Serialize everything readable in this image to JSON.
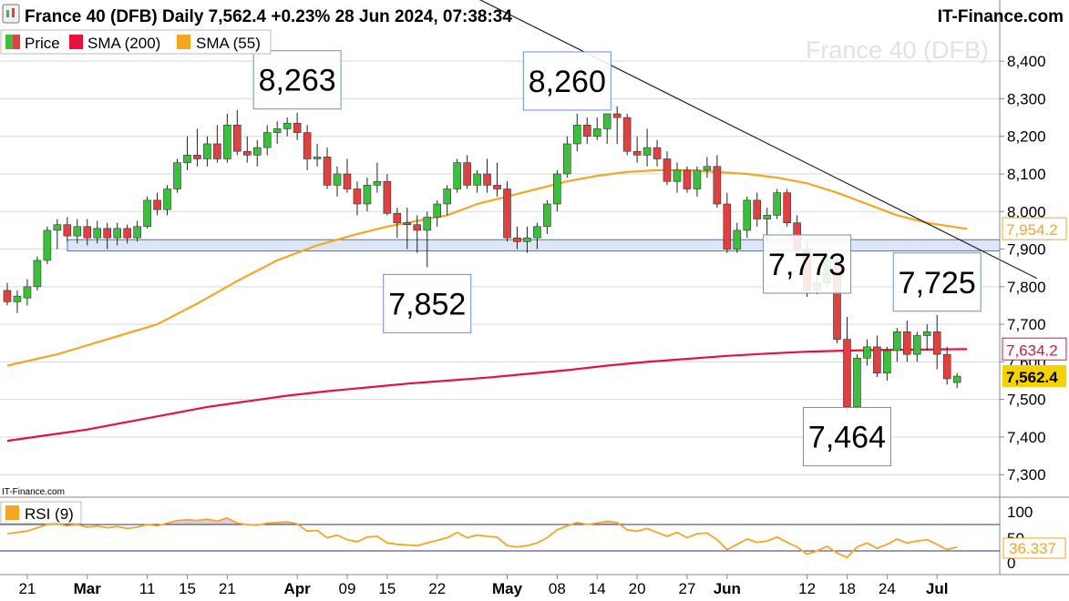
{
  "header": {
    "title": "France 40 (DFB) Daily 7,562.4 +0.23% 28 Jun 2024, 07:38:34",
    "brand": "IT-Finance.com",
    "watermark": "France 40 (DFB)",
    "source": "IT-Finance.com"
  },
  "legend": [
    {
      "label": "Price",
      "icon": "price-swatch",
      "color": "#3cbf3c"
    },
    {
      "label": "SMA (200)",
      "icon": "sma200-swatch",
      "color": "#e8103c"
    },
    {
      "label": "SMA (55)",
      "icon": "sma55-swatch",
      "color": "#f5a623"
    }
  ],
  "rsi": {
    "label": "RSI (9)",
    "value_label": "36.337",
    "ticks": [
      "100",
      "50",
      "0"
    ],
    "color": "#f5a623"
  },
  "colors": {
    "up": "#3cbf3c",
    "down": "#e0403f",
    "sma200": "#e8103c",
    "sma55": "#f5a623",
    "support_zone": "#dde6f7",
    "support_border": "#4a6fc4",
    "trendline": "#222222",
    "grid": "#d9d9d9"
  },
  "chart_data": {
    "type": "candlestick",
    "ylim": [
      7240,
      8490
    ],
    "yticks": [
      7300,
      7400,
      7500,
      7600,
      7700,
      7800,
      7900,
      8000,
      8100,
      8200,
      8300,
      8400
    ],
    "ytick_labels": [
      "7,300",
      "7,400",
      "7,500",
      "7,600",
      "7,700",
      "7,800",
      "7,900",
      "8,000",
      "8,100",
      "8,200",
      "8,300",
      "8,400"
    ],
    "x_labels": [
      {
        "label": "21",
        "i": 2
      },
      {
        "label": "Mar",
        "i": 8
      },
      {
        "label": "11",
        "i": 14
      },
      {
        "label": "15",
        "i": 18
      },
      {
        "label": "21",
        "i": 22
      },
      {
        "label": "Apr",
        "i": 29
      },
      {
        "label": "09",
        "i": 34
      },
      {
        "label": "15",
        "i": 38
      },
      {
        "label": "22",
        "i": 43
      },
      {
        "label": "May",
        "i": 50
      },
      {
        "label": "08",
        "i": 55
      },
      {
        "label": "14",
        "i": 59
      },
      {
        "label": "20",
        "i": 63
      },
      {
        "label": "27",
        "i": 68
      },
      {
        "label": "Jun",
        "i": 72
      },
      {
        "label": "12",
        "i": 80
      },
      {
        "label": "18",
        "i": 84
      },
      {
        "label": "24",
        "i": 88
      },
      {
        "label": "Jul",
        "i": 93
      }
    ],
    "candles": [
      [
        7790,
        7810,
        7750,
        7760
      ],
      [
        7760,
        7790,
        7730,
        7775
      ],
      [
        7770,
        7820,
        7750,
        7800
      ],
      [
        7800,
        7880,
        7790,
        7870
      ],
      [
        7870,
        7960,
        7860,
        7950
      ],
      [
        7950,
        7980,
        7900,
        7965
      ],
      [
        7965,
        7985,
        7920,
        7935
      ],
      [
        7935,
        7980,
        7915,
        7960
      ],
      [
        7960,
        7980,
        7910,
        7930
      ],
      [
        7930,
        7975,
        7915,
        7955
      ],
      [
        7955,
        7970,
        7900,
        7930
      ],
      [
        7930,
        7970,
        7910,
        7955
      ],
      [
        7955,
        7965,
        7915,
        7930
      ],
      [
        7930,
        7975,
        7920,
        7960
      ],
      [
        7960,
        8040,
        7955,
        8030
      ],
      [
        8030,
        8050,
        7990,
        8005
      ],
      [
        8005,
        8070,
        7990,
        8060
      ],
      [
        8060,
        8140,
        8050,
        8130
      ],
      [
        8130,
        8200,
        8110,
        8150
      ],
      [
        8150,
        8220,
        8120,
        8140
      ],
      [
        8140,
        8200,
        8120,
        8180
      ],
      [
        8180,
        8230,
        8130,
        8140
      ],
      [
        8140,
        8260,
        8130,
        8230
      ],
      [
        8230,
        8270,
        8150,
        8160
      ],
      [
        8160,
        8200,
        8130,
        8150
      ],
      [
        8150,
        8190,
        8120,
        8170
      ],
      [
        8170,
        8230,
        8150,
        8210
      ],
      [
        8210,
        8240,
        8180,
        8220
      ],
      [
        8220,
        8250,
        8200,
        8235
      ],
      [
        8235,
        8263,
        8190,
        8210
      ],
      [
        8210,
        8230,
        8110,
        8140
      ],
      [
        8140,
        8180,
        8120,
        8145
      ],
      [
        8145,
        8170,
        8060,
        8070
      ],
      [
        8070,
        8120,
        8040,
        8100
      ],
      [
        8100,
        8140,
        8050,
        8060
      ],
      [
        8060,
        8080,
        7990,
        8020
      ],
      [
        8020,
        8090,
        8000,
        8070
      ],
      [
        8070,
        8130,
        8050,
        8080
      ],
      [
        8080,
        8100,
        7990,
        7995
      ],
      [
        7995,
        8010,
        7930,
        7970
      ],
      [
        7970,
        8010,
        7900,
        7965
      ],
      [
        7965,
        7990,
        7890,
        7950
      ],
      [
        7950,
        8000,
        7852,
        7985
      ],
      [
        7985,
        8030,
        7960,
        8020
      ],
      [
        8020,
        8070,
        7990,
        8060
      ],
      [
        8060,
        8140,
        8050,
        8130
      ],
      [
        8130,
        8150,
        8060,
        8070
      ],
      [
        8070,
        8110,
        8050,
        8100
      ],
      [
        8100,
        8140,
        8050,
        8070
      ],
      [
        8070,
        8130,
        8040,
        8060
      ],
      [
        8060,
        8080,
        7920,
        7930
      ],
      [
        7930,
        7960,
        7900,
        7920
      ],
      [
        7920,
        7960,
        7890,
        7930
      ],
      [
        7930,
        7970,
        7900,
        7960
      ],
      [
        7960,
        8030,
        7940,
        8020
      ],
      [
        8020,
        8110,
        8000,
        8100
      ],
      [
        8100,
        8200,
        8090,
        8180
      ],
      [
        8180,
        8260,
        8160,
        8230
      ],
      [
        8230,
        8250,
        8180,
        8200
      ],
      [
        8200,
        8250,
        8190,
        8220
      ],
      [
        8220,
        8260,
        8180,
        8260
      ],
      [
        8260,
        8280,
        8180,
        8250
      ],
      [
        8250,
        8260,
        8150,
        8160
      ],
      [
        8160,
        8200,
        8130,
        8150
      ],
      [
        8150,
        8220,
        8120,
        8170
      ],
      [
        8170,
        8190,
        8120,
        8140
      ],
      [
        8140,
        8160,
        8070,
        8080
      ],
      [
        8080,
        8130,
        8050,
        8110
      ],
      [
        8110,
        8120,
        8050,
        8060
      ],
      [
        8060,
        8120,
        8040,
        8110
      ],
      [
        8110,
        8145,
        8090,
        8120
      ],
      [
        8120,
        8150,
        8010,
        8020
      ],
      [
        8020,
        8050,
        7890,
        7900
      ],
      [
        7900,
        7970,
        7890,
        7950
      ],
      [
        7950,
        8040,
        7930,
        8030
      ],
      [
        8030,
        8050,
        7960,
        7980
      ],
      [
        7980,
        8010,
        7920,
        7990
      ],
      [
        7990,
        8060,
        7980,
        8050
      ],
      [
        8050,
        8060,
        7960,
        7970
      ],
      [
        7970,
        7990,
        7880,
        7900
      ],
      [
        7900,
        7920,
        7773,
        7790
      ],
      [
        7790,
        7830,
        7780,
        7810
      ],
      [
        7810,
        7880,
        7800,
        7870
      ],
      [
        7870,
        7880,
        7650,
        7660
      ],
      [
        7660,
        7720,
        7464,
        7480
      ],
      [
        7480,
        7620,
        7470,
        7610
      ],
      [
        7610,
        7660,
        7590,
        7640
      ],
      [
        7640,
        7670,
        7560,
        7570
      ],
      [
        7570,
        7640,
        7550,
        7630
      ],
      [
        7630,
        7690,
        7600,
        7680
      ],
      [
        7680,
        7710,
        7600,
        7620
      ],
      [
        7620,
        7680,
        7600,
        7670
      ],
      [
        7670,
        7700,
        7630,
        7680
      ],
      [
        7680,
        7725,
        7580,
        7620
      ],
      [
        7620,
        7640,
        7540,
        7555
      ],
      [
        7545,
        7570,
        7530,
        7562
      ]
    ],
    "sma55": {
      "name": "SMA (55)",
      "last": "7,954.2",
      "points": [
        [
          0,
          7590
        ],
        [
          5,
          7620
        ],
        [
          10,
          7660
        ],
        [
          15,
          7700
        ],
        [
          19,
          7755
        ],
        [
          23,
          7815
        ],
        [
          27,
          7870
        ],
        [
          31,
          7910
        ],
        [
          35,
          7940
        ],
        [
          38,
          7960
        ],
        [
          41,
          7975
        ],
        [
          44,
          7990
        ],
        [
          47,
          8020
        ],
        [
          50,
          8040
        ],
        [
          53,
          8060
        ],
        [
          56,
          8080
        ],
        [
          59,
          8095
        ],
        [
          62,
          8105
        ],
        [
          65,
          8110
        ],
        [
          68,
          8110
        ],
        [
          71,
          8105
        ],
        [
          74,
          8100
        ],
        [
          77,
          8090
        ],
        [
          80,
          8075
        ],
        [
          83,
          8050
        ],
        [
          86,
          8020
        ],
        [
          89,
          7990
        ],
        [
          92,
          7970
        ],
        [
          96,
          7954
        ]
      ]
    },
    "sma200": {
      "name": "SMA (200)",
      "last": "7,634.2",
      "points": [
        [
          0,
          7390
        ],
        [
          4,
          7405
        ],
        [
          8,
          7420
        ],
        [
          12,
          7440
        ],
        [
          16,
          7460
        ],
        [
          20,
          7480
        ],
        [
          24,
          7495
        ],
        [
          28,
          7510
        ],
        [
          32,
          7522
        ],
        [
          36,
          7532
        ],
        [
          40,
          7542
        ],
        [
          44,
          7550
        ],
        [
          48,
          7558
        ],
        [
          52,
          7568
        ],
        [
          56,
          7578
        ],
        [
          60,
          7590
        ],
        [
          64,
          7600
        ],
        [
          68,
          7608
        ],
        [
          72,
          7616
        ],
        [
          76,
          7622
        ],
        [
          80,
          7627
        ],
        [
          84,
          7630
        ],
        [
          88,
          7632
        ],
        [
          92,
          7633
        ],
        [
          96,
          7634
        ]
      ]
    },
    "support_zone": [
      7895,
      7925
    ],
    "trendline": {
      "from": [
        44,
        8607
      ],
      "to": [
        103,
        7822
      ]
    },
    "annotations": [
      {
        "text": "8,263",
        "i": 29,
        "value": 8263
      },
      {
        "text": "8,260",
        "i": 56,
        "value": 8260
      },
      {
        "text": "7,852",
        "i": 42,
        "value": 7852
      },
      {
        "text": "7,773",
        "i": 80,
        "value": 7773
      },
      {
        "text": "7,725",
        "i": 93,
        "value": 7725
      },
      {
        "text": "7,464",
        "i": 84,
        "value": 7464
      }
    ],
    "price_tags": [
      {
        "text": "7,954.2",
        "value": 7954.2,
        "color": "#f5a623",
        "text_color": "#f5a623"
      },
      {
        "text": "7,634.2",
        "value": 7634.2,
        "color": "#e8103c",
        "text_color": "#e8103c"
      },
      {
        "text": "7,562.4",
        "value": 7562.4,
        "color": "#f5d300",
        "text_color": "#000000"
      }
    ],
    "rsi_levels": [
      70,
      30
    ],
    "rsi_values": [
      56,
      58,
      60,
      65,
      70,
      71,
      68,
      70,
      66,
      68,
      65,
      67,
      64,
      66,
      70,
      68,
      72,
      76,
      77,
      76,
      78,
      75,
      80,
      72,
      70,
      69,
      72,
      73,
      74,
      71,
      60,
      61,
      50,
      54,
      47,
      44,
      51,
      52,
      42,
      40,
      39,
      38,
      42,
      46,
      50,
      58,
      50,
      54,
      52,
      51,
      38,
      36,
      38,
      42,
      50,
      62,
      68,
      73,
      70,
      72,
      75,
      73,
      62,
      60,
      64,
      58,
      52,
      58,
      50,
      56,
      57,
      47,
      32,
      40,
      48,
      43,
      45,
      51,
      43,
      36,
      25,
      30,
      37,
      27,
      20,
      36,
      42,
      34,
      40,
      48,
      42,
      45,
      47,
      40,
      32,
      36
    ]
  }
}
